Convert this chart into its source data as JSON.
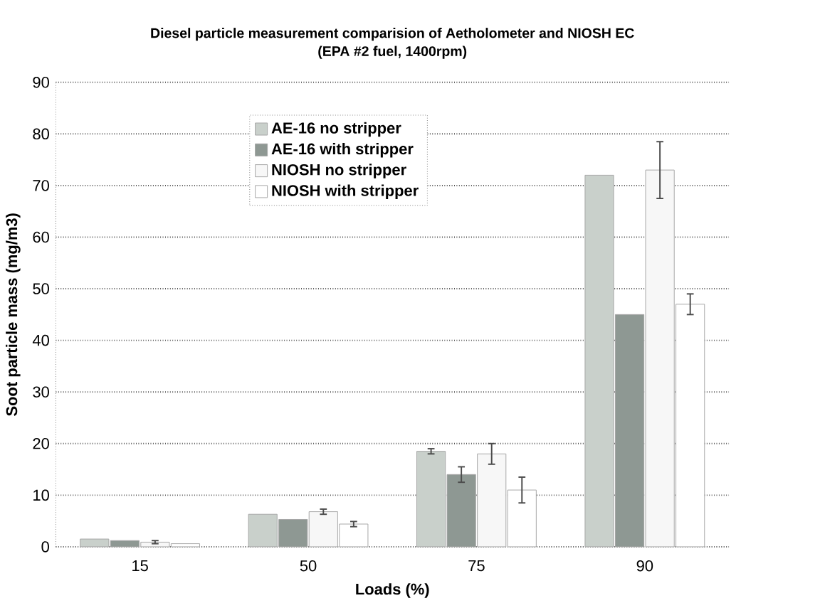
{
  "chart_data": {
    "type": "bar",
    "title": "Diesel particle measurement comparision of Aetholometer and NIOSH EC",
    "subtitle": "(EPA #2 fuel, 1400rpm)",
    "xlabel": "Loads (%)",
    "ylabel": "Soot particle mass (mg/m3)",
    "categories": [
      "15",
      "50",
      "75",
      "90"
    ],
    "series": [
      {
        "name": "AE-16 no stripper",
        "color": "#c9d0cb",
        "values": [
          1.5,
          6.3,
          18.5,
          72
        ],
        "errors": [
          null,
          null,
          0.5,
          null
        ]
      },
      {
        "name": "AE-16 with stripper",
        "color": "#8e9893",
        "values": [
          1.2,
          5.3,
          14,
          45
        ],
        "errors": [
          null,
          null,
          1.5,
          null
        ]
      },
      {
        "name": "NIOSH no stripper",
        "color": "#f7f7f7",
        "values": [
          0.9,
          6.8,
          18,
          73
        ],
        "errors": [
          0.3,
          0.5,
          2,
          5.5
        ]
      },
      {
        "name": "NIOSH with stripper",
        "color": "#ffffff",
        "values": [
          0.6,
          4.4,
          11,
          47
        ],
        "errors": [
          null,
          0.5,
          2.5,
          2
        ]
      }
    ],
    "ylim": [
      0,
      90
    ],
    "yticks": [
      0,
      10,
      20,
      30,
      40,
      50,
      60,
      70,
      80,
      90
    ],
    "grid": "y",
    "legend": "top"
  }
}
